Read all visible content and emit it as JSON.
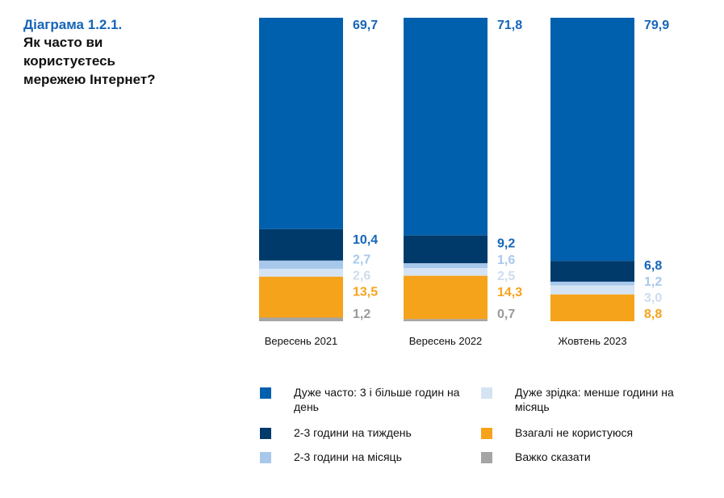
{
  "title": {
    "number": "Діаграма 1.2.1.",
    "text": "Як часто ви\nкористуєтесь\nмережею Інтернет?"
  },
  "colors": {
    "very_often": "#0060ae",
    "weekly": "#003a6b",
    "monthly": "#a8c8eb",
    "rarely": "#d5e4f4",
    "never": "#f6a31c",
    "hard_to_say": "#a5a5a5"
  },
  "chart_data": {
    "type": "bar",
    "stacked": true,
    "normalized": true,
    "categories": [
      "Вересень 2021",
      "Вересень 2022",
      "Жовтень 2023"
    ],
    "series": [
      {
        "key": "very_often",
        "name": "Дуже часто: 3 і більше годин на день",
        "values": [
          69.7,
          71.8,
          79.9
        ],
        "labels": [
          "69,7",
          "71,8",
          "79,9"
        ],
        "label_color": "#1565b8"
      },
      {
        "key": "weekly",
        "name": "2-3 години на тиждень",
        "values": [
          10.4,
          9.2,
          6.8
        ],
        "labels": [
          "10,4",
          "9,2",
          "6,8"
        ],
        "label_color": "#1565b8"
      },
      {
        "key": "monthly",
        "name": "2-3 години на місяць",
        "values": [
          2.7,
          1.6,
          1.2
        ],
        "labels": [
          "2,7",
          "1,6",
          "1,2"
        ],
        "label_color": "#a8c8eb"
      },
      {
        "key": "rarely",
        "name": "Дуже зрідка: менше години на місяць",
        "values": [
          2.6,
          2.5,
          3.0
        ],
        "labels": [
          "2,6",
          "2,5",
          "3,0"
        ],
        "label_color": "#cfdcec"
      },
      {
        "key": "never",
        "name": "Взагалі не користуюся",
        "values": [
          13.5,
          14.3,
          8.8
        ],
        "labels": [
          "13,5",
          "14,3",
          "8,8"
        ],
        "label_color": "#f6a31c"
      },
      {
        "key": "hard_to_say",
        "name": "Важко сказати",
        "values": [
          1.2,
          0.7,
          0
        ],
        "labels": [
          "1,2",
          "0,7",
          ""
        ],
        "label_color": "#9a9a9a"
      }
    ],
    "legend_position": "bottom",
    "legend_order": [
      "very_often",
      "rarely",
      "weekly",
      "never",
      "monthly",
      "hard_to_say"
    ]
  }
}
